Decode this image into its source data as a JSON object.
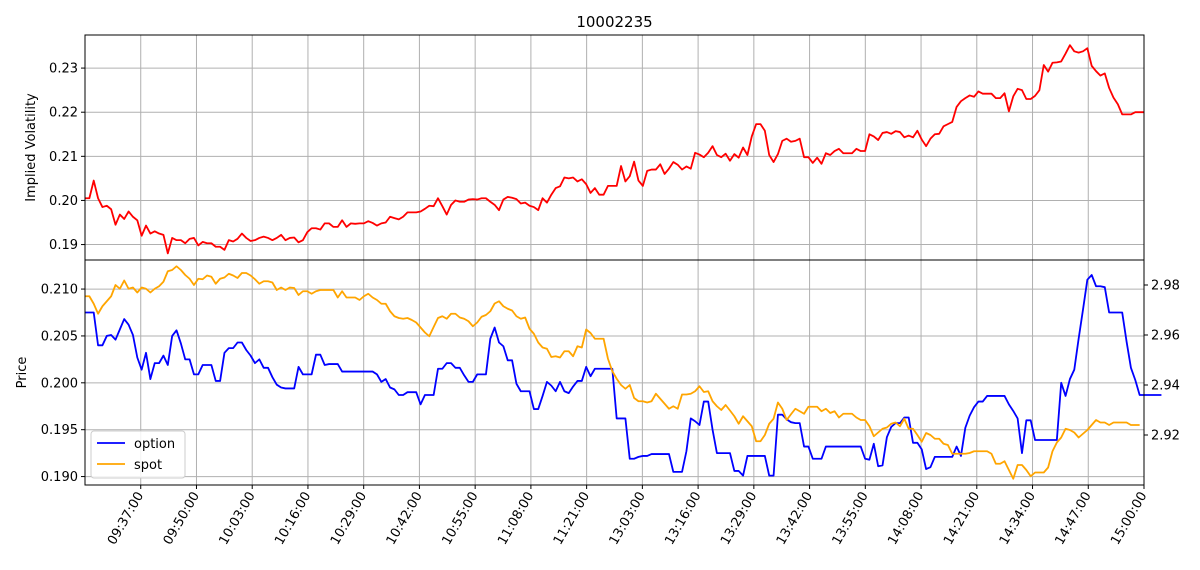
{
  "chart_data": [
    {
      "type": "line",
      "title": "10002235",
      "xlabel": "",
      "ylabel": "Implied Volatility",
      "ylim": [
        0.1865,
        0.2375
      ],
      "yticks": [
        "0.19",
        "0.20",
        "0.21",
        "0.22",
        "0.23"
      ],
      "grid": true,
      "series": [
        {
          "color": "#ff0000",
          "values": [
            0.2005,
            0.2005,
            0.2045,
            0.2005,
            0.1985,
            0.1988,
            0.198,
            0.1945,
            0.1968,
            0.1958,
            0.1975,
            0.1963,
            0.1955,
            0.192,
            0.1943,
            0.1925,
            0.193,
            0.1925,
            0.1922,
            0.188,
            0.1915,
            0.191,
            0.191,
            0.1903,
            0.1913,
            0.1915,
            0.1898,
            0.1906,
            0.1903,
            0.1903,
            0.1895,
            0.1895,
            0.1888,
            0.191,
            0.1907,
            0.1913,
            0.1925,
            0.1915,
            0.1908,
            0.191,
            0.1915,
            0.1918,
            0.1915,
            0.191,
            0.1915,
            0.1922,
            0.191,
            0.1915,
            0.1916,
            0.1905,
            0.191,
            0.1928,
            0.1937,
            0.1937,
            0.1934,
            0.1948,
            0.1948,
            0.194,
            0.194,
            0.1955,
            0.194,
            0.1948,
            0.1947,
            0.1948,
            0.1948,
            0.1953,
            0.1949,
            0.1943,
            0.1948,
            0.195,
            0.1963,
            0.196,
            0.1957,
            0.1963,
            0.1973,
            0.1973,
            0.1973,
            0.1975,
            0.1981,
            0.1988,
            0.1987,
            0.2005,
            0.1987,
            0.1968,
            0.199,
            0.2,
            0.1997,
            0.1997,
            0.2002,
            0.2003,
            0.2002,
            0.2005,
            0.2005,
            0.1997,
            0.199,
            0.1978,
            0.2002,
            0.2008,
            0.2006,
            0.2003,
            0.1993,
            0.1995,
            0.1988,
            0.1985,
            0.1978,
            0.2005,
            0.1995,
            0.2013,
            0.2028,
            0.2032,
            0.2052,
            0.205,
            0.2052,
            0.2043,
            0.2048,
            0.2037,
            0.2017,
            0.2028,
            0.2013,
            0.2013,
            0.2033,
            0.2033,
            0.2033,
            0.2078,
            0.2043,
            0.2055,
            0.2088,
            0.2045,
            0.2033,
            0.2067,
            0.207,
            0.207,
            0.2082,
            0.206,
            0.2072,
            0.2087,
            0.2081,
            0.207,
            0.2077,
            0.2072,
            0.2108,
            0.2104,
            0.2098,
            0.2108,
            0.2123,
            0.2103,
            0.2098,
            0.2106,
            0.209,
            0.2105,
            0.2097,
            0.212,
            0.2103,
            0.2145,
            0.2173,
            0.2173,
            0.2158,
            0.2103,
            0.2087,
            0.2105,
            0.2135,
            0.214,
            0.2133,
            0.2135,
            0.214,
            0.2098,
            0.2098,
            0.2085,
            0.2097,
            0.2083,
            0.2107,
            0.2103,
            0.2112,
            0.2117,
            0.2107,
            0.2107,
            0.2107,
            0.2117,
            0.2112,
            0.2112,
            0.215,
            0.2145,
            0.2137,
            0.2153,
            0.2155,
            0.2151,
            0.2157,
            0.2155,
            0.2143,
            0.2147,
            0.2143,
            0.2158,
            0.2138,
            0.2123,
            0.214,
            0.215,
            0.2151,
            0.2168,
            0.2173,
            0.2178,
            0.2212,
            0.2225,
            0.2232,
            0.2238,
            0.2235,
            0.2247,
            0.2242,
            0.2242,
            0.2242,
            0.2232,
            0.2232,
            0.2243,
            0.2202,
            0.2236,
            0.2253,
            0.225,
            0.223,
            0.223,
            0.2237,
            0.225,
            0.2307,
            0.2292,
            0.2312,
            0.2313,
            0.2315,
            0.2333,
            0.2352,
            0.2338,
            0.2335,
            0.2338,
            0.2345,
            0.2305,
            0.2293,
            0.2283,
            0.2288,
            0.2255,
            0.2233,
            0.2218,
            0.2195,
            0.2195,
            0.2195,
            0.22,
            0.22,
            0.22
          ]
        }
      ]
    },
    {
      "type": "line",
      "xlabel": "",
      "ylabel": "Price",
      "ylim": [
        0.1891,
        0.2131
      ],
      "ylim_right": [
        2.9,
        2.99
      ],
      "yticks": [
        "0.190",
        "0.195",
        "0.200",
        "0.205",
        "0.210"
      ],
      "yticks_right": [
        "2.92",
        "2.94",
        "2.96",
        "2.98"
      ],
      "grid": true,
      "legend_position": "lower-left",
      "xticks": [
        "09:37:00",
        "09:50:00",
        "10:03:00",
        "10:16:00",
        "10:29:00",
        "10:42:00",
        "10:55:00",
        "11:08:00",
        "11:21:00",
        "13:03:00",
        "13:16:00",
        "13:29:00",
        "13:42:00",
        "13:55:00",
        "14:08:00",
        "14:21:00",
        "14:34:00",
        "14:47:00",
        "15:00:00"
      ],
      "series": [
        {
          "name": "option",
          "color": "#0000ff",
          "axis": "left",
          "values": [
            0.2075,
            0.2075,
            0.2075,
            0.204,
            0.204,
            0.205,
            0.2051,
            0.2046,
            0.2057,
            0.2068,
            0.2062,
            0.2051,
            0.2027,
            0.2014,
            0.2032,
            0.2004,
            0.2021,
            0.2021,
            0.2029,
            0.2019,
            0.205,
            0.2056,
            0.2042,
            0.2025,
            0.2025,
            0.2009,
            0.2009,
            0.2019,
            0.2019,
            0.2019,
            0.2002,
            0.2002,
            0.2032,
            0.2037,
            0.2037,
            0.2043,
            0.2043,
            0.2035,
            0.2029,
            0.2021,
            0.2025,
            0.2016,
            0.2016,
            0.2006,
            0.1998,
            0.1995,
            0.1994,
            0.1994,
            0.1994,
            0.2017,
            0.2009,
            0.2009,
            0.2009,
            0.203,
            0.203,
            0.2019,
            0.202,
            0.202,
            0.202,
            0.2012,
            0.2012,
            0.2012,
            0.2012,
            0.2012,
            0.2012,
            0.2012,
            0.2012,
            0.2009,
            0.2001,
            0.2004,
            0.1995,
            0.1993,
            0.1987,
            0.1987,
            0.199,
            0.199,
            0.199,
            0.1977,
            0.1987,
            0.1987,
            0.1987,
            0.2015,
            0.2015,
            0.2021,
            0.2021,
            0.2016,
            0.2016,
            0.2008,
            0.2001,
            0.2001,
            0.2009,
            0.2009,
            0.2009,
            0.2047,
            0.2059,
            0.2043,
            0.2039,
            0.2024,
            0.2024,
            0.1999,
            0.1991,
            0.1991,
            0.1991,
            0.1972,
            0.1972,
            0.1986,
            0.2001,
            0.1997,
            0.1991,
            0.2001,
            0.1991,
            0.1989,
            0.1996,
            0.2002,
            0.2002,
            0.2017,
            0.2007,
            0.2015,
            0.2015,
            0.2015,
            0.2015,
            0.2015,
            0.1962,
            0.1962,
            0.1962,
            0.1919,
            0.1919,
            0.1921,
            0.1922,
            0.1922,
            0.1924,
            0.1924,
            0.1924,
            0.1924,
            0.1924,
            0.1905,
            0.1905,
            0.1905,
            0.1927,
            0.1962,
            0.1959,
            0.1955,
            0.198,
            0.198,
            0.195,
            0.1925,
            0.1925,
            0.1925,
            0.1925,
            0.1906,
            0.1906,
            0.1901,
            0.1922,
            0.1922,
            0.1922,
            0.1922,
            0.1922,
            0.1901,
            0.1901,
            0.1966,
            0.1966,
            0.1961,
            0.1958,
            0.1957,
            0.1957,
            0.1932,
            0.1932,
            0.1919,
            0.1919,
            0.1919,
            0.1932,
            0.1932,
            0.1932,
            0.1932,
            0.1932,
            0.1932,
            0.1932,
            0.1932,
            0.1932,
            0.1919,
            0.1918,
            0.1935,
            0.1911,
            0.1912,
            0.1942,
            0.1953,
            0.1957,
            0.1957,
            0.1963,
            0.1963,
            0.1936,
            0.1936,
            0.1929,
            0.1908,
            0.191,
            0.1921,
            0.1921,
            0.1921,
            0.1921,
            0.1921,
            0.1932,
            0.1922,
            0.1952,
            0.1965,
            0.1974,
            0.198,
            0.198,
            0.1986,
            0.1986,
            0.1986,
            0.1986,
            0.1986,
            0.1977,
            0.197,
            0.1962,
            0.1925,
            0.196,
            0.196,
            0.1939,
            0.1939,
            0.1939,
            0.1939,
            0.1939,
            0.1939,
            0.2,
            0.1986,
            0.2004,
            0.2014,
            0.2047,
            0.2078,
            0.211,
            0.2115,
            0.2103,
            0.2103,
            0.2102,
            0.2075,
            0.2075,
            0.2075,
            0.2075,
            0.2044,
            0.2016,
            0.2003,
            0.1987,
            0.1987,
            0.1987,
            0.1987,
            0.1987,
            0.1987
          ]
        },
        {
          "name": "spot",
          "color": "#ffa500",
          "axis": "right",
          "values": [
            2.9755,
            2.9755,
            2.9725,
            2.9685,
            2.9715,
            2.9735,
            2.9755,
            2.98,
            2.9785,
            2.9818,
            2.9785,
            2.979,
            2.977,
            2.979,
            2.9785,
            2.977,
            2.9785,
            2.9795,
            2.9813,
            2.9855,
            2.986,
            2.9875,
            2.986,
            2.984,
            2.9825,
            2.98,
            2.9825,
            2.9823,
            2.9838,
            2.9833,
            2.9805,
            2.9825,
            2.983,
            2.9845,
            2.9838,
            2.9828,
            2.9848,
            2.9848,
            2.9838,
            2.9823,
            2.9805,
            2.9815,
            2.9815,
            2.981,
            2.978,
            2.979,
            2.978,
            2.979,
            2.9788,
            2.976,
            2.9775,
            2.9775,
            2.9765,
            2.9775,
            2.978,
            2.978,
            2.978,
            2.978,
            2.975,
            2.9775,
            2.975,
            2.975,
            2.975,
            2.974,
            2.9755,
            2.9765,
            2.975,
            2.974,
            2.9725,
            2.9725,
            2.9695,
            2.9675,
            2.9668,
            2.9665,
            2.9668,
            2.966,
            2.965,
            2.963,
            2.961,
            2.9595,
            2.9632,
            2.9668,
            2.9675,
            2.9665,
            2.9685,
            2.9685,
            2.967,
            2.9665,
            2.9655,
            2.9635,
            2.965,
            2.9673,
            2.968,
            2.9695,
            2.9726,
            2.9735,
            2.9715,
            2.9705,
            2.9698,
            2.9675,
            2.9665,
            2.967,
            2.9625,
            2.9605,
            2.957,
            2.955,
            2.9545,
            2.9512,
            2.9515,
            2.951,
            2.9535,
            2.9535,
            2.9515,
            2.9555,
            2.955,
            2.9622,
            2.9608,
            2.9585,
            2.9585,
            2.9585,
            2.9505,
            2.9455,
            2.9425,
            2.94,
            2.9385,
            2.94,
            2.9348,
            2.9335,
            2.9335,
            2.933,
            2.9335,
            2.9365,
            2.9345,
            2.9325,
            2.9305,
            2.9315,
            2.9305,
            2.9362,
            2.9362,
            2.9365,
            2.9375,
            2.9395,
            2.9372,
            2.9375,
            2.9335,
            2.9315,
            2.93,
            2.932,
            2.9298,
            2.9275,
            2.9245,
            2.9275,
            2.9255,
            2.9235,
            2.9175,
            2.9175,
            2.92,
            2.9245,
            2.9265,
            2.933,
            2.9305,
            2.926,
            2.9283,
            2.9305,
            2.9295,
            2.9285,
            2.9313,
            2.9313,
            2.9313,
            2.9295,
            2.9305,
            2.9288,
            2.9295,
            2.927,
            2.9285,
            2.9285,
            2.9285,
            2.927,
            2.926,
            2.926,
            2.9235,
            2.9195,
            2.921,
            2.9225,
            2.923,
            2.9245,
            2.925,
            2.9235,
            2.9265,
            2.9225,
            2.9225,
            2.92,
            2.9173,
            2.9208,
            2.92,
            2.9185,
            2.9185,
            2.9165,
            2.916,
            2.9125,
            2.9125,
            2.9125,
            2.9125,
            2.9128,
            2.9135,
            2.9135,
            2.9135,
            2.9135,
            2.9125,
            2.9085,
            2.9085,
            2.9095,
            2.906,
            2.9025,
            2.908,
            2.908,
            2.906,
            2.9035,
            2.905,
            2.905,
            2.905,
            2.907,
            2.9135,
            2.917,
            2.919,
            2.9225,
            2.922,
            2.921,
            2.919,
            2.9205,
            2.922,
            2.924,
            2.926,
            2.925,
            2.925,
            2.924,
            2.925,
            2.925,
            2.925,
            2.925,
            2.924,
            2.924,
            2.924
          ]
        }
      ]
    }
  ]
}
